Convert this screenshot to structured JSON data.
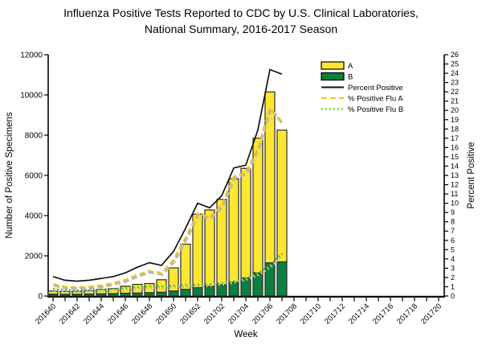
{
  "title": {
    "line1": "Influenza Positive Tests Reported to CDC by U.S. Clinical Laboratories,",
    "line2": "National Summary, 2016-2017 Season"
  },
  "axes": {
    "left_label": "Number of Positive Specimens",
    "right_label": "Percent Positive",
    "x_label": "Week",
    "left_tick_labels": [
      0,
      2000,
      4000,
      6000,
      8000,
      10000,
      12000
    ],
    "right_tick_labels": [
      0,
      1,
      2,
      3,
      4,
      5,
      6,
      7,
      8,
      9,
      10,
      11,
      12,
      13,
      14,
      15,
      16,
      17,
      18,
      19,
      20,
      21,
      22,
      23,
      24,
      25,
      26
    ],
    "x_tick_labels": [
      "201640",
      "201642",
      "201644",
      "201646",
      "201648",
      "201650",
      "201652",
      "201702",
      "201704",
      "201706",
      "201708",
      "201710",
      "201712",
      "201714",
      "201716",
      "201718",
      "201720"
    ]
  },
  "legend": [
    {
      "label": "A",
      "swatch": "rect",
      "color_key": "flu_a_fill"
    },
    {
      "label": "B",
      "swatch": "rect",
      "color_key": "flu_b_fill"
    },
    {
      "label": "Percent Positive",
      "swatch": "line-solid",
      "color_key": "pct_line"
    },
    {
      "label": "% Positive Flu A",
      "swatch": "line-dashed",
      "color_key": "pct_a_line"
    },
    {
      "label": "% Positive Flu B",
      "swatch": "line-dotted",
      "color_key": "pct_b_line"
    }
  ],
  "colors": {
    "flu_a_fill": "#ffe632",
    "flu_b_fill": "#0c7f3f",
    "pct_line": "#141414",
    "pct_a_line": "#efc21d",
    "pct_b_line": "#58c322",
    "bar_stroke": "#2b2b2b",
    "axis": "#000000",
    "line_shadow": "#b9b9b9"
  },
  "chart_data": {
    "type": "combo (stacked bar + line)",
    "x_weeks_all": [
      "201640",
      "201641",
      "201642",
      "201643",
      "201644",
      "201645",
      "201646",
      "201647",
      "201648",
      "201649",
      "201650",
      "201651",
      "201652",
      "201701",
      "201702",
      "201703",
      "201704",
      "201705",
      "201706",
      "201707",
      "201708",
      "201709",
      "201710",
      "201711",
      "201712",
      "201713",
      "201714",
      "201715",
      "201716",
      "201717",
      "201718",
      "201719",
      "201720"
    ],
    "bar_weeks": [
      "201640",
      "201641",
      "201642",
      "201643",
      "201644",
      "201645",
      "201646",
      "201647",
      "201648",
      "201649",
      "201650",
      "201651",
      "201652",
      "201701",
      "201702",
      "201703",
      "201704",
      "201705",
      "201706",
      "201707"
    ],
    "series": [
      {
        "name": "A",
        "type": "bar",
        "axis": "left",
        "stack_order": "top",
        "values": [
          150,
          140,
          145,
          165,
          210,
          250,
          350,
          430,
          450,
          620,
          1150,
          2250,
          3650,
          3800,
          4250,
          5150,
          5450,
          6700,
          8500,
          6550
        ]
      },
      {
        "name": "B",
        "type": "bar",
        "axis": "left",
        "stack_order": "bottom",
        "values": [
          95,
          85,
          90,
          100,
          110,
          120,
          140,
          150,
          170,
          190,
          250,
          330,
          420,
          480,
          560,
          680,
          900,
          1150,
          1650,
          1700
        ]
      },
      {
        "name": "Percent Positive",
        "type": "line-solid",
        "axis": "right",
        "values": [
          2.1,
          1.7,
          1.6,
          1.7,
          1.9,
          2.1,
          2.5,
          3.1,
          3.6,
          3.3,
          4.8,
          7.3,
          10.0,
          9.5,
          10.8,
          13.8,
          14.1,
          17.9,
          24.4,
          23.9
        ]
      },
      {
        "name": "% Positive Flu A",
        "type": "line-dashed",
        "axis": "right",
        "values": [
          1.3,
          1.0,
          0.95,
          1.0,
          1.15,
          1.4,
          1.75,
          2.3,
          2.7,
          2.5,
          3.9,
          6.3,
          8.9,
          8.5,
          9.8,
          12.9,
          13.3,
          16.0,
          20.3,
          18.7
        ]
      },
      {
        "name": "% Positive Flu B",
        "type": "line-dotted",
        "axis": "right",
        "values": [
          0.8,
          0.65,
          0.63,
          0.68,
          0.73,
          0.78,
          0.88,
          0.98,
          1.07,
          1.07,
          1.13,
          1.19,
          1.22,
          1.28,
          1.42,
          1.62,
          1.95,
          2.45,
          3.3,
          4.6
        ]
      }
    ],
    "left_ylim": [
      0,
      12000
    ],
    "right_ylim": [
      0,
      26
    ],
    "grid": false,
    "legend_position": "top-right-inside"
  }
}
